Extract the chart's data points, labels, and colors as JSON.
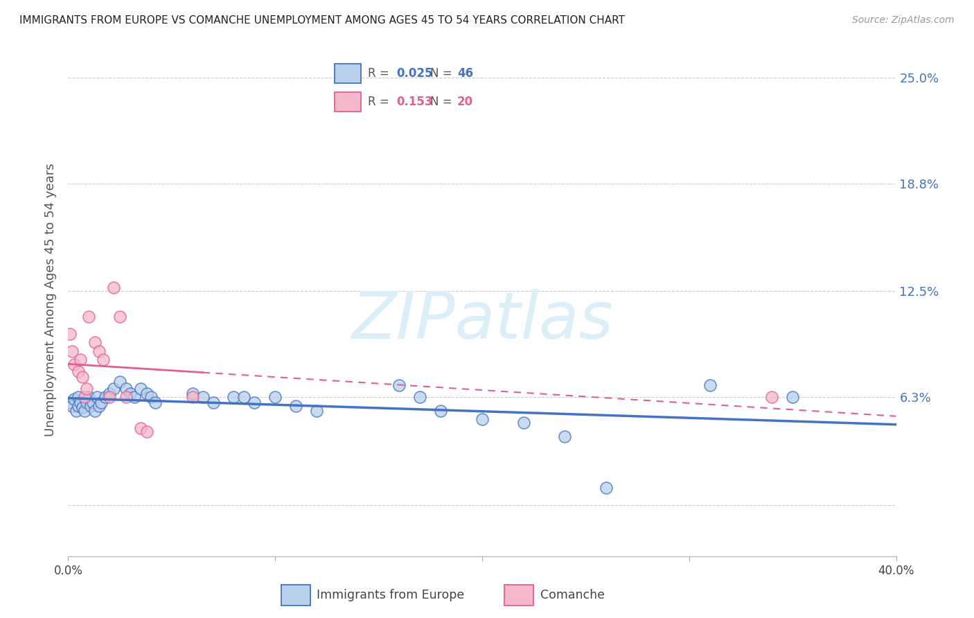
{
  "title": "IMMIGRANTS FROM EUROPE VS COMANCHE UNEMPLOYMENT AMONG AGES 45 TO 54 YEARS CORRELATION CHART",
  "source": "Source: ZipAtlas.com",
  "ylabel": "Unemployment Among Ages 45 to 54 years",
  "xmin": 0.0,
  "xmax": 0.4,
  "ymin": -0.03,
  "ymax": 0.27,
  "ytick_vals": [
    0.0,
    0.063,
    0.125,
    0.188,
    0.25
  ],
  "ytick_labels": [
    "",
    "6.3%",
    "12.5%",
    "18.8%",
    "25.0%"
  ],
  "xtick_vals": [
    0.0,
    0.1,
    0.2,
    0.3,
    0.4
  ],
  "xtick_labels": [
    "0.0%",
    "",
    "",
    "",
    "40.0%"
  ],
  "legend_r_blue": "0.025",
  "legend_n_blue": "46",
  "legend_r_pink": "0.153",
  "legend_n_pink": "20",
  "blue_pts": [
    [
      0.001,
      0.06
    ],
    [
      0.002,
      0.058
    ],
    [
      0.003,
      0.062
    ],
    [
      0.004,
      0.055
    ],
    [
      0.005,
      0.063
    ],
    [
      0.005,
      0.058
    ],
    [
      0.006,
      0.06
    ],
    [
      0.007,
      0.057
    ],
    [
      0.008,
      0.055
    ],
    [
      0.009,
      0.06
    ],
    [
      0.01,
      0.063
    ],
    [
      0.011,
      0.058
    ],
    [
      0.012,
      0.06
    ],
    [
      0.013,
      0.055
    ],
    [
      0.014,
      0.063
    ],
    [
      0.015,
      0.058
    ],
    [
      0.016,
      0.06
    ],
    [
      0.018,
      0.063
    ],
    [
      0.02,
      0.065
    ],
    [
      0.022,
      0.068
    ],
    [
      0.025,
      0.072
    ],
    [
      0.028,
      0.068
    ],
    [
      0.03,
      0.065
    ],
    [
      0.032,
      0.063
    ],
    [
      0.035,
      0.068
    ],
    [
      0.038,
      0.065
    ],
    [
      0.04,
      0.063
    ],
    [
      0.042,
      0.06
    ],
    [
      0.06,
      0.065
    ],
    [
      0.065,
      0.063
    ],
    [
      0.07,
      0.06
    ],
    [
      0.08,
      0.063
    ],
    [
      0.085,
      0.063
    ],
    [
      0.09,
      0.06
    ],
    [
      0.1,
      0.063
    ],
    [
      0.11,
      0.058
    ],
    [
      0.12,
      0.055
    ],
    [
      0.16,
      0.07
    ],
    [
      0.17,
      0.063
    ],
    [
      0.18,
      0.055
    ],
    [
      0.2,
      0.05
    ],
    [
      0.22,
      0.048
    ],
    [
      0.24,
      0.04
    ],
    [
      0.26,
      0.01
    ],
    [
      0.31,
      0.07
    ],
    [
      0.35,
      0.063
    ]
  ],
  "pink_pts": [
    [
      0.001,
      0.1
    ],
    [
      0.002,
      0.09
    ],
    [
      0.003,
      0.082
    ],
    [
      0.005,
      0.078
    ],
    [
      0.006,
      0.085
    ],
    [
      0.007,
      0.075
    ],
    [
      0.008,
      0.063
    ],
    [
      0.009,
      0.068
    ],
    [
      0.01,
      0.11
    ],
    [
      0.013,
      0.095
    ],
    [
      0.015,
      0.09
    ],
    [
      0.017,
      0.085
    ],
    [
      0.02,
      0.063
    ],
    [
      0.022,
      0.127
    ],
    [
      0.025,
      0.11
    ],
    [
      0.028,
      0.063
    ],
    [
      0.035,
      0.045
    ],
    [
      0.038,
      0.043
    ],
    [
      0.06,
      0.063
    ],
    [
      0.34,
      0.063
    ]
  ],
  "blue_face": "#b8d0ea",
  "blue_edge": "#4472C4",
  "pink_face": "#f5b8c8",
  "pink_edge": "#E06090",
  "blue_line_color": "#4472C4",
  "pink_line_color": "#E06090",
  "scatter_size": 150,
  "watermark": "ZIPatlas",
  "watermark_color": "#dceef8",
  "bg_color": "#ffffff",
  "grid_color": "#cccccc"
}
